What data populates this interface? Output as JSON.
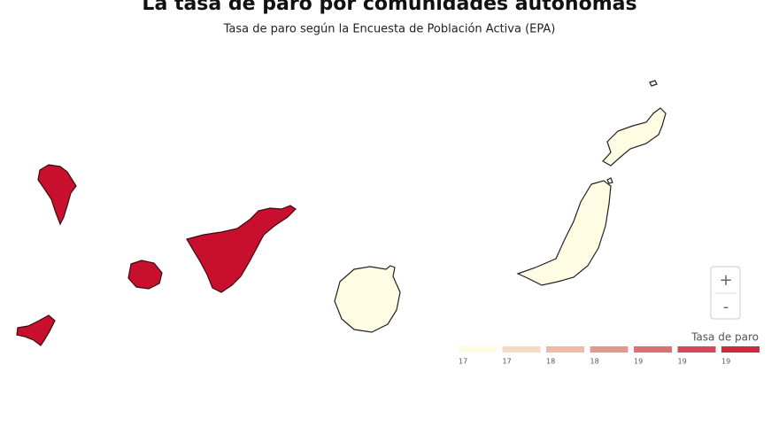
{
  "header": {
    "title": "La tasa de paro por comunidades autónomas",
    "subtitle": "Tasa de paro según la Encuesta de Población Activa (EPA)"
  },
  "legend": {
    "title": "Tasa de paro",
    "colors": [
      "#fdfbe0",
      "#f6dac6",
      "#efbaa9",
      "#e5968f",
      "#dc6f76",
      "#d4495c",
      "#cc2a40"
    ],
    "labels": [
      "17",
      "17",
      "18",
      "18",
      "19",
      "19",
      "19"
    ]
  },
  "zoom": {
    "in": "+",
    "out": "-"
  }
}
